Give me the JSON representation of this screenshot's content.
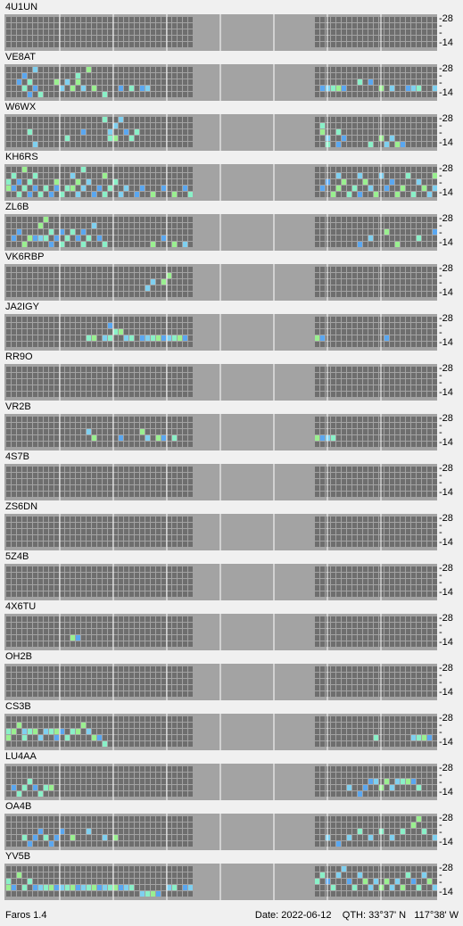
{
  "app": {
    "title": "Faros 1.4"
  },
  "status": {
    "date_label": "Date:",
    "date": "2022-06-12",
    "qth_label": "QTH:",
    "lat": "33°37' N",
    "lon": "117°38' W"
  },
  "scale": {
    "top": "28",
    "bottom": "14"
  },
  "colors": {
    "panel": "#a3a3a3",
    "cell_off": "#6e6e6e",
    "cell_weak": "#5aa7f0",
    "cell_mid": "#7fd0f0",
    "cell_strong": "#8af0c8",
    "cell_green": "#9af090",
    "cell_gray": "#b0b0b0",
    "separator": "#ffffff"
  },
  "beacons": [
    {
      "callsign": "4U1UN",
      "activity_left": [],
      "activity_right": []
    },
    {
      "callsign": "VE8AT",
      "activity_left": [
        [
          2,
          2
        ],
        [
          3,
          1
        ],
        [
          3,
          3
        ],
        [
          4,
          2
        ],
        [
          4,
          4
        ],
        [
          5,
          0
        ],
        [
          5,
          3
        ],
        [
          6,
          4
        ],
        [
          9,
          2
        ],
        [
          10,
          3
        ],
        [
          11,
          2
        ],
        [
          12,
          3
        ],
        [
          13,
          1
        ],
        [
          13,
          2
        ],
        [
          14,
          3
        ],
        [
          15,
          0
        ],
        [
          16,
          3
        ],
        [
          18,
          4
        ],
        [
          21,
          3
        ],
        [
          23,
          3
        ],
        [
          25,
          3
        ],
        [
          26,
          3
        ]
      ],
      "activity_right": [
        [
          1,
          3
        ],
        [
          2,
          3
        ],
        [
          3,
          3
        ],
        [
          4,
          3
        ],
        [
          5,
          3
        ],
        [
          8,
          2
        ],
        [
          10,
          2
        ],
        [
          12,
          3
        ],
        [
          14,
          3
        ],
        [
          17,
          3
        ],
        [
          18,
          3
        ],
        [
          19,
          3
        ],
        [
          22,
          3
        ],
        [
          25,
          2
        ],
        [
          27,
          3
        ],
        [
          28,
          3
        ]
      ]
    },
    {
      "callsign": "W6WX",
      "activity_left": [
        [
          4,
          2
        ],
        [
          5,
          4
        ],
        [
          11,
          3
        ],
        [
          14,
          2
        ],
        [
          18,
          0
        ],
        [
          19,
          2
        ],
        [
          19,
          3
        ],
        [
          20,
          1
        ],
        [
          20,
          3
        ],
        [
          21,
          0
        ],
        [
          22,
          2
        ],
        [
          23,
          3
        ],
        [
          24,
          2
        ]
      ],
      "activity_right": [
        [
          1,
          1
        ],
        [
          1,
          2
        ],
        [
          2,
          3
        ],
        [
          2,
          4
        ],
        [
          4,
          2
        ],
        [
          4,
          4
        ],
        [
          5,
          3
        ],
        [
          10,
          4
        ],
        [
          12,
          3
        ],
        [
          13,
          4
        ],
        [
          14,
          3
        ],
        [
          15,
          4
        ],
        [
          16,
          4
        ]
      ]
    },
    {
      "callsign": "KH6RS",
      "activity_left": [
        [
          0,
          2
        ],
        [
          0,
          3
        ],
        [
          1,
          1
        ],
        [
          1,
          3
        ],
        [
          2,
          2
        ],
        [
          2,
          4
        ],
        [
          3,
          0
        ],
        [
          3,
          3
        ],
        [
          4,
          2
        ],
        [
          4,
          4
        ],
        [
          5,
          1
        ],
        [
          5,
          3
        ],
        [
          6,
          4
        ],
        [
          7,
          3
        ],
        [
          8,
          4
        ],
        [
          9,
          2
        ],
        [
          9,
          3
        ],
        [
          10,
          4
        ],
        [
          11,
          3
        ],
        [
          12,
          1
        ],
        [
          12,
          3
        ],
        [
          13,
          2
        ],
        [
          13,
          4
        ],
        [
          14,
          0
        ],
        [
          14,
          3
        ],
        [
          15,
          2
        ],
        [
          16,
          4
        ],
        [
          17,
          3
        ],
        [
          18,
          1
        ],
        [
          18,
          4
        ],
        [
          19,
          3
        ],
        [
          20,
          2
        ],
        [
          21,
          4
        ],
        [
          22,
          3
        ],
        [
          24,
          4
        ],
        [
          25,
          3
        ],
        [
          27,
          4
        ],
        [
          29,
          3
        ],
        [
          31,
          4
        ],
        [
          33,
          3
        ],
        [
          34,
          4
        ]
      ],
      "activity_right": [
        [
          1,
          3
        ],
        [
          2,
          2
        ],
        [
          3,
          4
        ],
        [
          4,
          1
        ],
        [
          4,
          3
        ],
        [
          5,
          2
        ],
        [
          6,
          4
        ],
        [
          7,
          3
        ],
        [
          8,
          1
        ],
        [
          8,
          4
        ],
        [
          9,
          2
        ],
        [
          10,
          3
        ],
        [
          11,
          4
        ],
        [
          12,
          1
        ],
        [
          13,
          3
        ],
        [
          14,
          2
        ],
        [
          15,
          4
        ],
        [
          16,
          3
        ],
        [
          17,
          1
        ],
        [
          18,
          4
        ],
        [
          19,
          2
        ],
        [
          20,
          3
        ],
        [
          21,
          4
        ],
        [
          22,
          1
        ],
        [
          22,
          3
        ],
        [
          23,
          2
        ],
        [
          24,
          4
        ],
        [
          25,
          3
        ],
        [
          26,
          2
        ],
        [
          27,
          1
        ],
        [
          28,
          3
        ]
      ]
    },
    {
      "callsign": "ZL6B",
      "activity_left": [
        [
          1,
          3
        ],
        [
          2,
          2
        ],
        [
          3,
          4
        ],
        [
          4,
          3
        ],
        [
          5,
          3
        ],
        [
          6,
          1
        ],
        [
          6,
          3
        ],
        [
          7,
          0
        ],
        [
          7,
          3
        ],
        [
          8,
          2
        ],
        [
          8,
          4
        ],
        [
          9,
          3
        ],
        [
          10,
          2
        ],
        [
          10,
          4
        ],
        [
          11,
          3
        ],
        [
          12,
          2
        ],
        [
          13,
          3
        ],
        [
          14,
          2
        ],
        [
          14,
          4
        ],
        [
          15,
          3
        ],
        [
          16,
          1
        ],
        [
          17,
          3
        ],
        [
          18,
          4
        ],
        [
          27,
          4
        ],
        [
          29,
          3
        ],
        [
          31,
          4
        ],
        [
          33,
          4
        ]
      ],
      "activity_right": [
        [
          8,
          4
        ],
        [
          10,
          3
        ],
        [
          13,
          2
        ],
        [
          15,
          4
        ],
        [
          19,
          3
        ],
        [
          22,
          2
        ],
        [
          23,
          1
        ],
        [
          24,
          2
        ],
        [
          25,
          3
        ],
        [
          26,
          2
        ],
        [
          27,
          1
        ],
        [
          28,
          2
        ]
      ]
    },
    {
      "callsign": "VK6RBP",
      "activity_left": [
        [
          26,
          3
        ],
        [
          27,
          2
        ],
        [
          29,
          2
        ],
        [
          30,
          1
        ]
      ],
      "activity_right": []
    },
    {
      "callsign": "JA2IGY",
      "activity_left": [
        [
          15,
          3
        ],
        [
          16,
          3
        ],
        [
          18,
          3
        ],
        [
          19,
          1
        ],
        [
          19,
          3
        ],
        [
          20,
          2
        ],
        [
          21,
          2
        ],
        [
          22,
          3
        ],
        [
          23,
          3
        ],
        [
          25,
          3
        ],
        [
          26,
          3
        ],
        [
          27,
          3
        ],
        [
          28,
          3
        ],
        [
          29,
          3
        ],
        [
          30,
          3
        ],
        [
          31,
          3
        ],
        [
          32,
          3
        ],
        [
          33,
          3
        ]
      ],
      "activity_right": [
        [
          0,
          3
        ],
        [
          1,
          3
        ],
        [
          13,
          3
        ]
      ]
    },
    {
      "callsign": "RR9O",
      "activity_left": [],
      "activity_right": []
    },
    {
      "callsign": "VR2B",
      "activity_left": [
        [
          15,
          2
        ],
        [
          16,
          3
        ],
        [
          21,
          3
        ],
        [
          25,
          2
        ],
        [
          26,
          3
        ],
        [
          28,
          3
        ],
        [
          29,
          3
        ],
        [
          31,
          3
        ]
      ],
      "activity_right": [
        [
          0,
          3
        ],
        [
          1,
          3
        ],
        [
          2,
          3
        ],
        [
          3,
          3
        ]
      ]
    },
    {
      "callsign": "4S7B",
      "activity_left": [],
      "activity_right": []
    },
    {
      "callsign": "ZS6DN",
      "activity_left": [],
      "activity_right": []
    },
    {
      "callsign": "5Z4B",
      "activity_left": [],
      "activity_right": []
    },
    {
      "callsign": "4X6TU",
      "activity_left": [
        [
          12,
          3
        ],
        [
          13,
          3
        ]
      ],
      "activity_right": []
    },
    {
      "callsign": "OH2B",
      "activity_left": [],
      "activity_right": []
    },
    {
      "callsign": "CS3B",
      "activity_left": [
        [
          0,
          2
        ],
        [
          0,
          3
        ],
        [
          1,
          2
        ],
        [
          2,
          1
        ],
        [
          3,
          2
        ],
        [
          3,
          3
        ],
        [
          4,
          2
        ],
        [
          5,
          2
        ],
        [
          6,
          3
        ],
        [
          7,
          2
        ],
        [
          8,
          2
        ],
        [
          9,
          2
        ],
        [
          9,
          3
        ],
        [
          10,
          2
        ],
        [
          11,
          3
        ],
        [
          12,
          2
        ],
        [
          13,
          2
        ],
        [
          14,
          1
        ],
        [
          15,
          2
        ],
        [
          16,
          3
        ],
        [
          17,
          3
        ],
        [
          18,
          4
        ]
      ],
      "activity_right": [
        [
          11,
          3
        ],
        [
          18,
          3
        ],
        [
          19,
          3
        ],
        [
          20,
          3
        ],
        [
          21,
          3
        ]
      ]
    },
    {
      "callsign": "LU4AA",
      "activity_left": [
        [
          1,
          3
        ],
        [
          2,
          4
        ],
        [
          3,
          3
        ],
        [
          4,
          2
        ],
        [
          5,
          3
        ],
        [
          6,
          4
        ],
        [
          7,
          3
        ],
        [
          8,
          3
        ]
      ],
      "activity_right": [
        [
          6,
          3
        ],
        [
          8,
          4
        ],
        [
          9,
          3
        ],
        [
          10,
          2
        ],
        [
          11,
          2
        ],
        [
          12,
          3
        ],
        [
          13,
          2
        ],
        [
          14,
          3
        ],
        [
          15,
          2
        ],
        [
          16,
          2
        ],
        [
          17,
          2
        ],
        [
          18,
          2
        ],
        [
          19,
          3
        ]
      ]
    },
    {
      "callsign": "OA4B",
      "activity_left": [
        [
          3,
          3
        ],
        [
          4,
          4
        ],
        [
          5,
          3
        ],
        [
          6,
          2
        ],
        [
          7,
          3
        ],
        [
          8,
          4
        ],
        [
          9,
          3
        ],
        [
          10,
          2
        ],
        [
          12,
          3
        ],
        [
          15,
          2
        ],
        [
          18,
          3
        ],
        [
          20,
          3
        ]
      ],
      "activity_right": [
        [
          2,
          3
        ],
        [
          4,
          4
        ],
        [
          6,
          3
        ],
        [
          8,
          2
        ],
        [
          10,
          3
        ],
        [
          12,
          2
        ],
        [
          14,
          3
        ],
        [
          16,
          2
        ],
        [
          18,
          1
        ],
        [
          19,
          0
        ],
        [
          20,
          2
        ],
        [
          22,
          3
        ],
        [
          24,
          2
        ],
        [
          26,
          3
        ]
      ]
    },
    {
      "callsign": "YV5B",
      "activity_left": [
        [
          0,
          2
        ],
        [
          0,
          3
        ],
        [
          1,
          3
        ],
        [
          2,
          1
        ],
        [
          3,
          3
        ],
        [
          4,
          2
        ],
        [
          5,
          3
        ],
        [
          6,
          3
        ],
        [
          7,
          3
        ],
        [
          8,
          3
        ],
        [
          9,
          3
        ],
        [
          10,
          3
        ],
        [
          11,
          3
        ],
        [
          12,
          3
        ],
        [
          13,
          3
        ],
        [
          14,
          3
        ],
        [
          15,
          3
        ],
        [
          16,
          3
        ],
        [
          17,
          3
        ],
        [
          18,
          3
        ],
        [
          19,
          3
        ],
        [
          20,
          3
        ],
        [
          21,
          3
        ],
        [
          22,
          3
        ],
        [
          23,
          3
        ],
        [
          25,
          4
        ],
        [
          26,
          4
        ],
        [
          27,
          4
        ],
        [
          28,
          4
        ],
        [
          30,
          3
        ],
        [
          31,
          3
        ],
        [
          33,
          3
        ],
        [
          34,
          3
        ]
      ],
      "activity_right": [
        [
          0,
          2
        ],
        [
          1,
          1
        ],
        [
          2,
          2
        ],
        [
          3,
          3
        ],
        [
          4,
          1
        ],
        [
          5,
          0
        ],
        [
          6,
          2
        ],
        [
          7,
          3
        ],
        [
          8,
          1
        ],
        [
          9,
          2
        ],
        [
          10,
          3
        ],
        [
          11,
          2
        ],
        [
          12,
          3
        ],
        [
          13,
          2
        ],
        [
          14,
          3
        ],
        [
          15,
          2
        ],
        [
          16,
          3
        ],
        [
          17,
          1
        ],
        [
          18,
          2
        ],
        [
          19,
          3
        ],
        [
          20,
          1
        ],
        [
          21,
          2
        ],
        [
          22,
          3
        ],
        [
          23,
          0
        ],
        [
          24,
          1
        ],
        [
          25,
          2
        ],
        [
          26,
          3
        ],
        [
          27,
          2
        ],
        [
          28,
          1
        ],
        [
          29,
          2
        ]
      ]
    }
  ]
}
